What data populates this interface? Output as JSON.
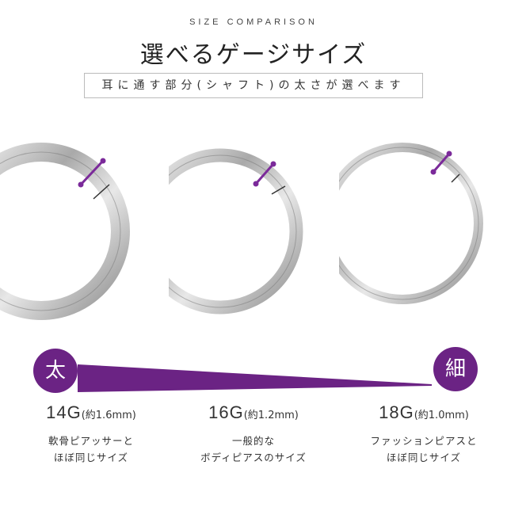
{
  "header": {
    "eyebrow": "SIZE COMPARISON",
    "title": "選べるゲージサイズ",
    "subtitle": "耳に通す部分(シャフト)の太さが選べます"
  },
  "colors": {
    "accent": "#6b2384",
    "silver": "#c8c8c8"
  },
  "scale": {
    "thick_label": "太",
    "thin_label": "細"
  },
  "sizes": [
    {
      "gauge": "14G",
      "approx": "(約1.6mm)",
      "desc_line1": "軟骨ピアッサーと",
      "desc_line2": "ほぼ同じサイズ",
      "image": "ring-14g"
    },
    {
      "gauge": "16G",
      "approx": "(約1.2mm)",
      "desc_line1": "一般的な",
      "desc_line2": "ボディピアスのサイズ",
      "image": "ring-16g"
    },
    {
      "gauge": "18G",
      "approx": "(約1.0mm)",
      "desc_line1": "ファッションピアスと",
      "desc_line2": "ほぼ同じサイズ",
      "image": "ring-18g"
    }
  ]
}
